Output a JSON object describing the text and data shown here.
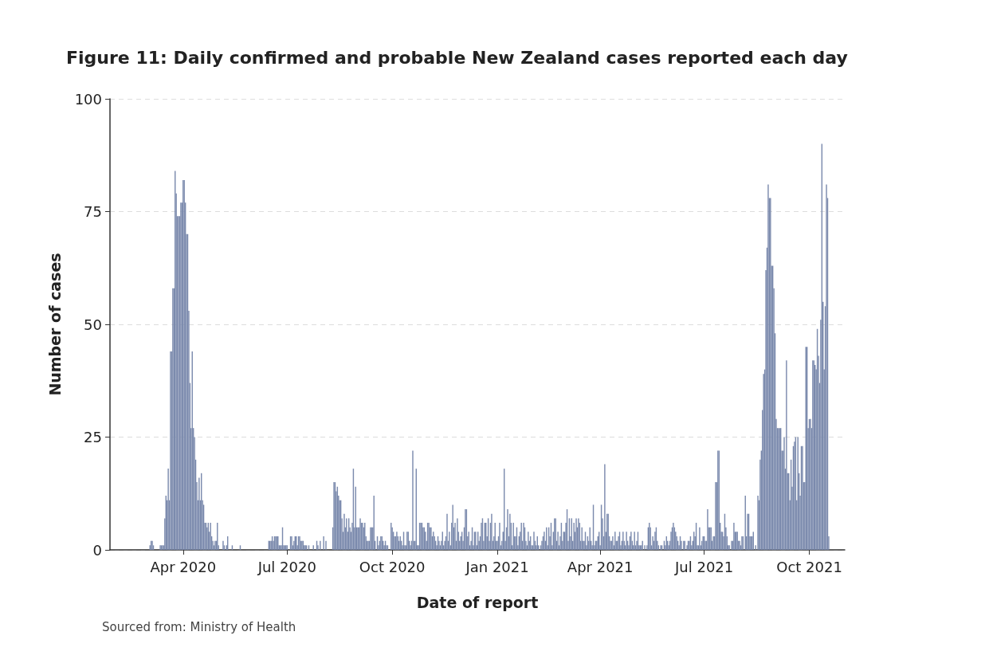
{
  "chart_data": {
    "type": "bar",
    "title": "Figure 11: Daily confirmed and probable New Zealand cases reported each day",
    "xlabel": "Date of report",
    "ylabel": "Number of cases",
    "annotations": [
      "Sourced from: Ministry of Health"
    ],
    "color": "#7b8aad",
    "x": [
      "2020-03-03",
      "2020-03-04",
      "2020-03-05",
      "2020-03-06",
      "2020-03-12",
      "2020-03-13",
      "2020-03-14",
      "2020-03-15",
      "2020-03-16",
      "2020-03-17",
      "2020-03-18",
      "2020-03-19",
      "2020-03-20",
      "2020-03-21",
      "2020-03-22",
      "2020-03-23",
      "2020-03-24",
      "2020-03-25",
      "2020-03-26",
      "2020-03-27",
      "2020-03-28",
      "2020-03-29",
      "2020-03-30",
      "2020-03-31",
      "2020-04-01",
      "2020-04-02",
      "2020-04-03",
      "2020-04-04",
      "2020-04-05",
      "2020-04-06",
      "2020-04-07",
      "2020-04-08",
      "2020-04-09",
      "2020-04-10",
      "2020-04-11",
      "2020-04-12",
      "2020-04-13",
      "2020-04-14",
      "2020-04-15",
      "2020-04-16",
      "2020-04-17",
      "2020-04-18",
      "2020-04-19",
      "2020-04-20",
      "2020-04-21",
      "2020-04-22",
      "2020-04-23",
      "2020-04-24",
      "2020-04-25",
      "2020-04-26",
      "2020-04-27",
      "2020-04-28",
      "2020-04-29",
      "2020-04-30",
      "2020-05-01",
      "2020-05-02",
      "2020-05-06",
      "2020-05-07",
      "2020-05-09",
      "2020-05-10",
      "2020-05-14",
      "2020-05-21",
      "2020-06-15",
      "2020-06-16",
      "2020-06-17",
      "2020-06-18",
      "2020-06-19",
      "2020-06-20",
      "2020-06-21",
      "2020-06-22",
      "2020-06-23",
      "2020-06-24",
      "2020-06-25",
      "2020-06-26",
      "2020-06-27",
      "2020-06-28",
      "2020-06-29",
      "2020-06-30",
      "2020-07-01",
      "2020-07-04",
      "2020-07-05",
      "2020-07-06",
      "2020-07-07",
      "2020-07-08",
      "2020-07-09",
      "2020-07-10",
      "2020-07-11",
      "2020-07-12",
      "2020-07-13",
      "2020-07-14",
      "2020-07-15",
      "2020-07-16",
      "2020-07-17",
      "2020-07-18",
      "2020-07-20",
      "2020-07-24",
      "2020-07-27",
      "2020-07-28",
      "2020-07-30",
      "2020-08-02",
      "2020-08-04",
      "2020-08-10",
      "2020-08-11",
      "2020-08-12",
      "2020-08-13",
      "2020-08-14",
      "2020-08-15",
      "2020-08-16",
      "2020-08-17",
      "2020-08-18",
      "2020-08-19",
      "2020-08-20",
      "2020-08-21",
      "2020-08-22",
      "2020-08-23",
      "2020-08-24",
      "2020-08-25",
      "2020-08-26",
      "2020-08-27",
      "2020-08-28",
      "2020-08-29",
      "2020-08-30",
      "2020-08-31",
      "2020-09-01",
      "2020-09-02",
      "2020-09-03",
      "2020-09-04",
      "2020-09-05",
      "2020-09-06",
      "2020-09-07",
      "2020-09-08",
      "2020-09-09",
      "2020-09-10",
      "2020-09-11",
      "2020-09-12",
      "2020-09-13",
      "2020-09-14",
      "2020-09-15",
      "2020-09-16",
      "2020-09-18",
      "2020-09-19",
      "2020-09-20",
      "2020-09-21",
      "2020-09-22",
      "2020-09-23",
      "2020-09-24",
      "2020-09-25",
      "2020-09-26",
      "2020-09-27",
      "2020-09-30",
      "2020-10-01",
      "2020-10-02",
      "2020-10-03",
      "2020-10-04",
      "2020-10-05",
      "2020-10-06",
      "2020-10-07",
      "2020-10-08",
      "2020-10-09",
      "2020-10-10",
      "2020-10-11",
      "2020-10-12",
      "2020-10-13",
      "2020-10-14",
      "2020-10-15",
      "2020-10-16",
      "2020-10-17",
      "2020-10-18",
      "2020-10-19",
      "2020-10-20",
      "2020-10-21",
      "2020-10-22",
      "2020-10-23",
      "2020-10-24",
      "2020-10-25",
      "2020-10-26",
      "2020-10-27",
      "2020-10-28",
      "2020-10-29",
      "2020-10-30",
      "2020-10-31",
      "2020-11-01",
      "2020-11-02",
      "2020-11-03",
      "2020-11-04",
      "2020-11-05",
      "2020-11-06",
      "2020-11-07",
      "2020-11-08",
      "2020-11-09",
      "2020-11-10",
      "2020-11-11",
      "2020-11-12",
      "2020-11-13",
      "2020-11-14",
      "2020-11-15",
      "2020-11-16",
      "2020-11-17",
      "2020-11-18",
      "2020-11-19",
      "2020-11-20",
      "2020-11-21",
      "2020-11-22",
      "2020-11-23",
      "2020-11-24",
      "2020-11-25",
      "2020-11-26",
      "2020-11-27",
      "2020-11-28",
      "2020-11-29",
      "2020-11-30",
      "2020-12-01",
      "2020-12-02",
      "2020-12-03",
      "2020-12-04",
      "2020-12-05",
      "2020-12-06",
      "2020-12-07",
      "2020-12-08",
      "2020-12-09",
      "2020-12-10",
      "2020-12-11",
      "2020-12-12",
      "2020-12-13",
      "2020-12-14",
      "2020-12-15",
      "2020-12-16",
      "2020-12-17",
      "2020-12-18",
      "2020-12-19",
      "2020-12-20",
      "2020-12-21",
      "2020-12-22",
      "2020-12-23",
      "2020-12-24",
      "2020-12-25",
      "2020-12-26",
      "2020-12-27",
      "2020-12-28",
      "2020-12-29",
      "2020-12-30",
      "2020-12-31",
      "2021-01-01",
      "2021-01-02",
      "2021-01-03",
      "2021-01-04",
      "2021-01-05",
      "2021-01-06",
      "2021-01-07",
      "2021-01-08",
      "2021-01-09",
      "2021-01-10",
      "2021-01-11",
      "2021-01-12",
      "2021-01-13",
      "2021-01-14",
      "2021-01-15",
      "2021-01-16",
      "2021-01-17",
      "2021-01-18",
      "2021-01-19",
      "2021-01-20",
      "2021-01-21",
      "2021-01-22",
      "2021-01-23",
      "2021-01-24",
      "2021-01-25",
      "2021-01-26",
      "2021-01-27",
      "2021-01-28",
      "2021-01-29",
      "2021-01-30",
      "2021-01-31",
      "2021-02-01",
      "2021-02-02",
      "2021-02-03",
      "2021-02-04",
      "2021-02-05",
      "2021-02-06",
      "2021-02-08",
      "2021-02-09",
      "2021-02-10",
      "2021-02-11",
      "2021-02-12",
      "2021-02-13",
      "2021-02-14",
      "2021-02-15",
      "2021-02-16",
      "2021-02-17",
      "2021-02-18",
      "2021-02-19",
      "2021-02-20",
      "2021-02-21",
      "2021-02-22",
      "2021-02-23",
      "2021-02-24",
      "2021-02-25",
      "2021-02-26",
      "2021-02-27",
      "2021-02-28",
      "2021-03-01",
      "2021-03-02",
      "2021-03-03",
      "2021-03-04",
      "2021-03-05",
      "2021-03-06",
      "2021-03-07",
      "2021-03-08",
      "2021-03-09",
      "2021-03-10",
      "2021-03-11",
      "2021-03-12",
      "2021-03-13",
      "2021-03-14",
      "2021-03-15",
      "2021-03-16",
      "2021-03-17",
      "2021-03-18",
      "2021-03-19",
      "2021-03-20",
      "2021-03-21",
      "2021-03-22",
      "2021-03-23",
      "2021-03-24",
      "2021-03-25",
      "2021-03-26",
      "2021-03-27",
      "2021-03-28",
      "2021-03-29",
      "2021-03-30",
      "2021-03-31",
      "2021-04-01",
      "2021-04-02",
      "2021-04-03",
      "2021-04-04",
      "2021-04-05",
      "2021-04-06",
      "2021-04-07",
      "2021-04-08",
      "2021-04-09",
      "2021-04-10",
      "2021-04-11",
      "2021-04-12",
      "2021-04-13",
      "2021-04-14",
      "2021-04-15",
      "2021-04-16",
      "2021-04-17",
      "2021-04-18",
      "2021-04-19",
      "2021-04-20",
      "2021-04-21",
      "2021-04-22",
      "2021-04-23",
      "2021-04-24",
      "2021-04-25",
      "2021-04-26",
      "2021-04-27",
      "2021-04-28",
      "2021-04-29",
      "2021-04-30",
      "2021-05-01",
      "2021-05-02",
      "2021-05-03",
      "2021-05-04",
      "2021-05-05",
      "2021-05-06",
      "2021-05-07",
      "2021-05-08",
      "2021-05-10",
      "2021-05-12",
      "2021-05-13",
      "2021-05-14",
      "2021-05-15",
      "2021-05-16",
      "2021-05-17",
      "2021-05-18",
      "2021-05-19",
      "2021-05-20",
      "2021-05-21",
      "2021-05-22",
      "2021-05-24",
      "2021-05-25",
      "2021-05-27",
      "2021-05-28",
      "2021-05-29",
      "2021-05-30",
      "2021-05-31",
      "2021-06-01",
      "2021-06-02",
      "2021-06-03",
      "2021-06-04",
      "2021-06-05",
      "2021-06-06",
      "2021-06-07",
      "2021-06-08",
      "2021-06-09",
      "2021-06-10",
      "2021-06-11",
      "2021-06-13",
      "2021-06-14",
      "2021-06-16",
      "2021-06-17",
      "2021-06-18",
      "2021-06-19",
      "2021-06-20",
      "2021-06-21",
      "2021-06-22",
      "2021-06-23",
      "2021-06-24",
      "2021-06-25",
      "2021-06-26",
      "2021-06-27",
      "2021-06-28",
      "2021-06-29",
      "2021-06-30",
      "2021-07-01",
      "2021-07-02",
      "2021-07-03",
      "2021-07-04",
      "2021-07-05",
      "2021-07-06",
      "2021-07-07",
      "2021-07-08",
      "2021-07-09",
      "2021-07-10",
      "2021-07-11",
      "2021-07-12",
      "2021-07-13",
      "2021-07-14",
      "2021-07-15",
      "2021-07-16",
      "2021-07-17",
      "2021-07-18",
      "2021-07-19",
      "2021-07-20",
      "2021-07-21",
      "2021-07-22",
      "2021-07-23",
      "2021-07-25",
      "2021-07-26",
      "2021-07-27",
      "2021-07-28",
      "2021-07-29",
      "2021-07-30",
      "2021-07-31",
      "2021-08-01",
      "2021-08-02",
      "2021-08-03",
      "2021-08-04",
      "2021-08-06",
      "2021-08-07",
      "2021-08-08",
      "2021-08-09",
      "2021-08-10",
      "2021-08-11",
      "2021-08-12",
      "2021-08-13",
      "2021-08-15",
      "2021-08-17",
      "2021-08-18",
      "2021-08-19",
      "2021-08-20",
      "2021-08-21",
      "2021-08-22",
      "2021-08-23",
      "2021-08-24",
      "2021-08-25",
      "2021-08-26",
      "2021-08-27",
      "2021-08-28",
      "2021-08-29",
      "2021-08-30",
      "2021-08-31",
      "2021-09-01",
      "2021-09-02",
      "2021-09-03",
      "2021-09-04",
      "2021-09-05",
      "2021-09-06",
      "2021-09-07",
      "2021-09-08",
      "2021-09-09",
      "2021-09-10",
      "2021-09-11",
      "2021-09-12",
      "2021-09-13",
      "2021-09-14",
      "2021-09-15",
      "2021-09-16",
      "2021-09-17",
      "2021-09-18",
      "2021-09-19",
      "2021-09-20",
      "2021-09-21",
      "2021-09-22",
      "2021-09-23",
      "2021-09-24",
      "2021-09-25",
      "2021-09-26",
      "2021-09-27",
      "2021-09-28",
      "2021-09-29",
      "2021-09-30",
      "2021-10-01",
      "2021-10-02",
      "2021-10-03",
      "2021-10-04",
      "2021-10-05",
      "2021-10-06",
      "2021-10-07",
      "2021-10-08",
      "2021-10-09",
      "2021-10-10",
      "2021-10-11",
      "2021-10-12",
      "2021-10-13",
      "2021-10-14",
      "2021-10-15",
      "2021-10-16",
      "2021-10-17",
      "2021-10-18"
    ],
    "values": [
      1,
      2,
      2,
      1,
      1,
      1,
      1,
      1,
      7,
      12,
      11,
      18,
      11,
      44,
      44,
      58,
      58,
      84,
      79,
      74,
      74,
      74,
      77,
      77,
      82,
      82,
      77,
      70,
      70,
      53,
      37,
      27,
      44,
      27,
      25,
      20,
      15,
      11,
      16,
      11,
      17,
      11,
      10,
      6,
      6,
      5,
      6,
      4,
      6,
      3,
      2,
      1,
      2,
      2,
      6,
      1,
      2,
      1,
      1,
      3,
      1,
      1,
      2,
      2,
      2,
      3,
      2,
      3,
      3,
      3,
      3,
      1,
      1,
      1,
      5,
      1,
      1,
      1,
      1,
      3,
      3,
      1,
      2,
      3,
      3,
      1,
      3,
      3,
      2,
      2,
      2,
      1,
      1,
      1,
      1,
      1,
      2,
      1,
      2,
      3,
      2,
      5,
      15,
      15,
      13,
      14,
      12,
      11,
      11,
      7,
      4,
      8,
      5,
      7,
      4,
      7,
      5,
      4,
      6,
      18,
      5,
      14,
      5,
      5,
      5,
      7,
      6,
      6,
      5,
      6,
      3,
      2,
      2,
      2,
      5,
      5,
      5,
      12,
      2,
      3,
      1,
      2,
      3,
      3,
      2,
      1,
      2,
      1,
      1,
      6,
      5,
      4,
      3,
      3,
      4,
      3,
      2,
      3,
      2,
      1,
      4,
      1,
      1,
      4,
      4,
      2,
      1,
      2,
      22,
      2,
      2,
      18,
      1,
      1,
      6,
      6,
      6,
      5,
      5,
      4,
      2,
      6,
      6,
      5,
      5,
      3,
      4,
      3,
      2,
      1,
      3,
      2,
      1,
      2,
      4,
      1,
      2,
      3,
      8,
      2,
      4,
      1,
      6,
      10,
      5,
      6,
      2,
      7,
      4,
      2,
      3,
      4,
      2,
      5,
      9,
      9,
      3,
      4,
      1,
      2,
      5,
      1,
      4,
      4,
      1,
      4,
      2,
      3,
      6,
      7,
      2,
      6,
      6,
      3,
      7,
      2,
      6,
      8,
      2,
      3,
      6,
      2,
      2,
      3,
      6,
      1,
      2,
      4,
      18,
      2,
      5,
      9,
      3,
      8,
      6,
      1,
      6,
      3,
      3,
      5,
      1,
      3,
      4,
      6,
      2,
      6,
      5,
      2,
      1,
      4,
      2,
      3,
      1,
      1,
      4,
      2,
      1,
      3,
      1,
      1,
      2,
      3,
      4,
      2,
      5,
      1,
      5,
      3,
      6,
      1,
      4,
      7,
      7,
      2,
      4,
      1,
      3,
      6,
      2,
      4,
      4,
      6,
      9,
      2,
      7,
      3,
      7,
      2,
      6,
      4,
      7,
      5,
      7,
      6,
      2,
      5,
      2,
      2,
      4,
      1,
      3,
      2,
      5,
      2,
      1,
      10,
      1,
      2,
      2,
      3,
      4,
      1,
      10,
      7,
      3,
      19,
      4,
      8,
      8,
      3,
      2,
      2,
      3,
      1,
      4,
      2,
      2,
      3,
      4,
      1,
      2,
      4,
      2,
      1,
      4,
      2,
      1,
      3,
      4,
      2,
      1,
      4,
      1,
      2,
      4,
      1,
      1,
      1,
      2,
      1,
      1,
      5,
      6,
      5,
      1,
      3,
      2,
      4,
      5,
      2,
      1,
      1,
      1,
      2,
      1,
      3,
      2,
      1,
      2,
      4,
      5,
      6,
      5,
      4,
      3,
      2,
      1,
      3,
      2,
      2,
      2,
      1,
      2,
      2,
      3,
      1,
      2,
      4,
      3,
      6,
      1,
      1,
      5,
      1,
      2,
      3,
      3,
      2,
      2,
      9,
      5,
      5,
      5,
      2,
      3,
      3,
      15,
      15,
      22,
      22,
      6,
      4,
      4,
      3,
      8,
      5,
      3,
      1,
      1,
      2,
      2,
      6,
      4,
      4,
      4,
      2,
      2,
      1,
      3,
      3,
      12,
      3,
      8,
      8,
      3,
      3,
      3,
      4,
      1,
      12,
      11,
      20,
      22,
      31,
      39,
      40,
      62,
      67,
      81,
      78,
      78,
      63,
      63,
      58,
      48,
      29,
      27,
      27,
      27,
      27,
      22,
      22,
      25,
      18,
      42,
      17,
      17,
      11,
      20,
      14,
      23,
      24,
      25,
      11,
      25,
      17,
      12,
      23,
      23,
      15,
      15,
      45,
      45,
      27,
      29,
      29,
      27,
      42,
      42,
      41,
      40,
      49,
      43,
      37,
      51,
      90,
      55,
      40,
      54,
      81,
      78,
      3
    ],
    "xlim": [
      "2020-01-28",
      "2021-11-01"
    ],
    "xticks": [
      {
        "value": "2020-04-01",
        "label": "Apr 2020"
      },
      {
        "value": "2020-07-01",
        "label": "Jul 2020"
      },
      {
        "value": "2020-10-01",
        "label": "Oct 2020"
      },
      {
        "value": "2021-01-01",
        "label": "Jan 2021"
      },
      {
        "value": "2021-04-01",
        "label": "Apr 2021"
      },
      {
        "value": "2021-07-01",
        "label": "Jul 2021"
      },
      {
        "value": "2021-10-01",
        "label": "Oct 2021"
      }
    ],
    "ylim": [
      0,
      100
    ],
    "yticks": [
      0,
      25,
      50,
      75,
      100
    ],
    "grid": "y"
  }
}
